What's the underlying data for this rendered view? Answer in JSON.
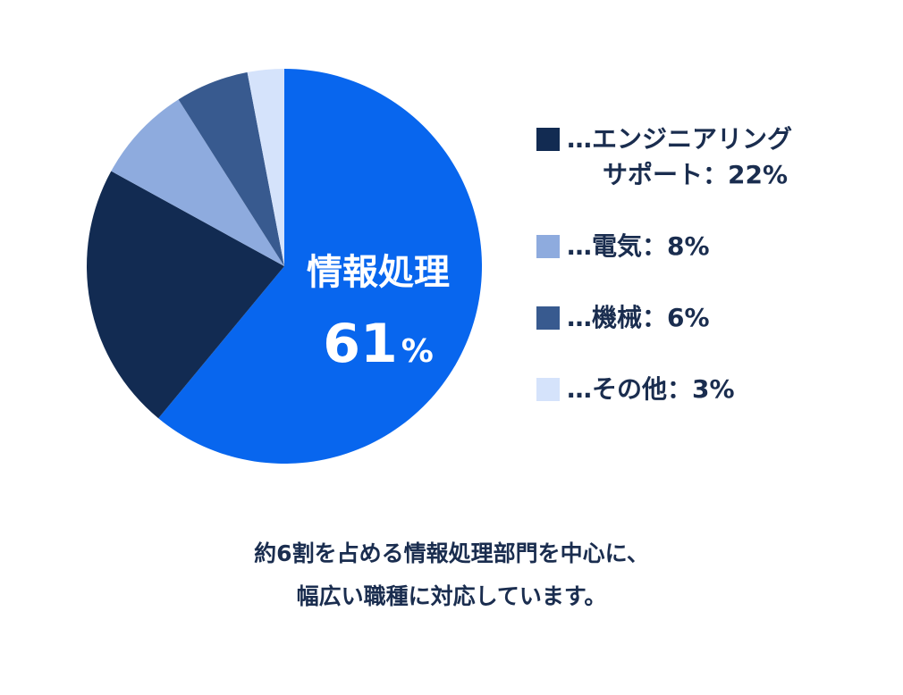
{
  "chart_data": {
    "type": "pie",
    "slices": [
      {
        "label": "情報処理",
        "value": 61,
        "color": "#0866ee"
      },
      {
        "label": "エンジニアリングサポート",
        "value": 22,
        "color": "#122b52"
      },
      {
        "label": "電気",
        "value": 8,
        "color": "#8eabde"
      },
      {
        "label": "機械",
        "value": 6,
        "color": "#385a8f"
      },
      {
        "label": "その他",
        "value": 3,
        "color": "#d5e3fb"
      }
    ],
    "callout": {
      "label": "情報処理",
      "value_text": "61",
      "unit": "%"
    }
  },
  "legend": [
    {
      "color": "#122b52",
      "line1": "…エンジニアリング",
      "line2": "サポート：22%"
    },
    {
      "color": "#8eabde",
      "line1": "…電気：8%",
      "line2": ""
    },
    {
      "color": "#385a8f",
      "line1": "…機械：6%",
      "line2": ""
    },
    {
      "color": "#d5e3fb",
      "line1": "…その他：3%",
      "line2": ""
    }
  ],
  "caption": {
    "line1": "約6割を占める情報処理部門を中心に、",
    "line2": "幅広い職種に対応しています。"
  }
}
